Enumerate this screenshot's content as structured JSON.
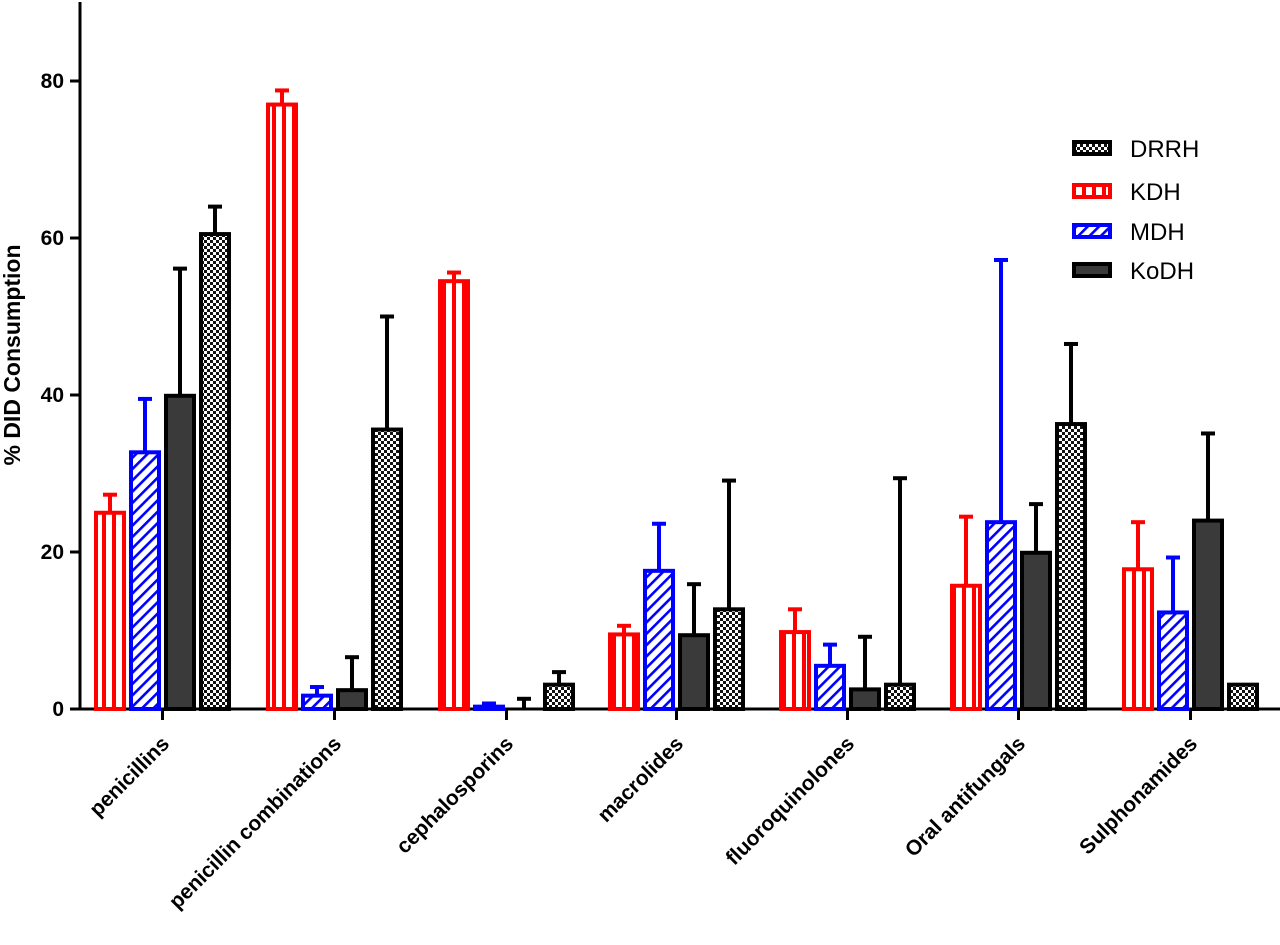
{
  "chart_data": {
    "type": "bar",
    "ylabel": "% DID Consumption",
    "xlabel": "",
    "ylim": [
      0,
      90
    ],
    "yticks": [
      0,
      20,
      40,
      60,
      80
    ],
    "grid": false,
    "legend_position": "top-right",
    "legend_order": [
      "DRRH",
      "KDH",
      "MDH",
      "KoDH"
    ],
    "categories": [
      "penicillins",
      "penicillin combinations",
      "cephalosporins",
      "macrolides",
      "fluoroquinolones",
      "Oral antifungals",
      "Sulphonamides"
    ],
    "series": [
      {
        "name": "KDH",
        "pattern": "vertical-stripes",
        "color": "#ff0000",
        "values": [
          25,
          77,
          54.5,
          9.5,
          9.8,
          15.7,
          17.8
        ],
        "error_upper": [
          27.3,
          78.8,
          55.6,
          10.6,
          12.7,
          24.5,
          23.8
        ]
      },
      {
        "name": "MDH",
        "pattern": "diagonal-hatch",
        "color": "#0000ff",
        "values": [
          32.7,
          1.7,
          0.3,
          17.6,
          5.5,
          23.8,
          12.3
        ],
        "error_upper": [
          39.5,
          2.8,
          0.7,
          23.6,
          8.2,
          57.2,
          19.3
        ]
      },
      {
        "name": "KoDH",
        "pattern": "solid",
        "color": "#3a3a3a",
        "values": [
          39.9,
          2.4,
          0,
          9.4,
          2.5,
          19.9,
          24
        ],
        "error_upper": [
          56.1,
          6.6,
          1.3,
          15.9,
          9.2,
          26.1,
          35.1
        ]
      },
      {
        "name": "DRRH",
        "pattern": "checkered",
        "color": "#000000",
        "values": [
          60.5,
          35.6,
          3.1,
          12.7,
          3.1,
          36.3,
          3.1
        ],
        "error_upper": [
          64,
          50,
          4.7,
          29.1,
          29.4,
          46.5,
          3.1
        ]
      }
    ]
  }
}
